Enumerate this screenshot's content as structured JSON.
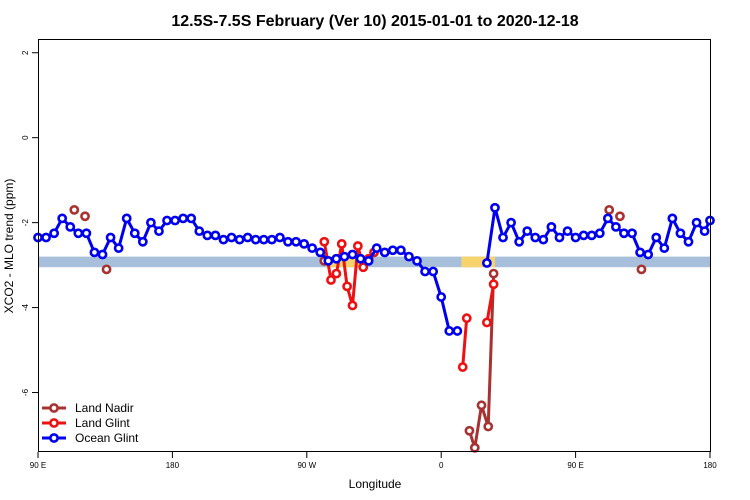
{
  "chart_data": {
    "type": "line",
    "title": "12.5S-7.5S February (Ver 10)   2015-01-01 to 2020-12-18",
    "xlabel": "Longitude",
    "ylabel": "XCO2 - MLO trend (ppm)",
    "xlim": [
      0,
      500
    ],
    "ylim": [
      -7.4,
      2.3
    ],
    "x_ticks": [
      {
        "value": 0,
        "label": "90 E"
      },
      {
        "value": 100,
        "label": "180"
      },
      {
        "value": 200,
        "label": "90 W"
      },
      {
        "value": 300,
        "label": "0"
      },
      {
        "value": 400,
        "label": "90 E"
      },
      {
        "value": 500,
        "label": "180"
      }
    ],
    "y_ticks": [
      {
        "value": 2,
        "label": "2"
      },
      {
        "value": 0,
        "label": "0"
      },
      {
        "value": -2,
        "label": "-2"
      },
      {
        "value": -4,
        "label": "-4"
      },
      {
        "value": -6,
        "label": "-6"
      }
    ],
    "band": {
      "y_low": -3.05,
      "y_high": -2.8,
      "color": "#a8bfdc"
    },
    "band_highlights": [
      {
        "x_start": 214,
        "x_end": 240,
        "color": "#f7d36b"
      },
      {
        "x_start": 315,
        "x_end": 340,
        "color": "#f7d36b"
      }
    ],
    "legend_position": "bottom-left",
    "series": [
      {
        "name": "Land Nadir",
        "color": "#a83232",
        "segments": [
          {
            "x": [
              27
            ],
            "y": [
              -1.7
            ]
          },
          {
            "x": [
              35
            ],
            "y": [
              -1.85
            ]
          },
          {
            "x": [
              51
            ],
            "y": [
              -3.1
            ]
          },
          {
            "x": [
              213
            ],
            "y": [
              -2.9
            ]
          },
          {
            "x": [
              321,
              325,
              330,
              335,
              339
            ],
            "y": [
              -6.9,
              -7.3,
              -6.3,
              -6.8,
              -3.2
            ]
          },
          {
            "x": [
              425
            ],
            "y": [
              -1.7
            ]
          },
          {
            "x": [
              433
            ],
            "y": [
              -1.85
            ]
          },
          {
            "x": [
              449
            ],
            "y": [
              -3.1
            ]
          }
        ]
      },
      {
        "name": "Land Glint",
        "color": "#ee1111",
        "segments": [
          {
            "x": [
              213,
              218,
              222,
              226,
              230,
              234,
              238,
              242,
              246,
              250
            ],
            "y": [
              -2.45,
              -3.35,
              -3.2,
              -2.5,
              -3.5,
              -3.95,
              -2.55,
              -3.05,
              -2.85,
              -2.7
            ]
          },
          {
            "x": [
              316,
              319
            ],
            "y": [
              -5.4,
              -4.25
            ]
          },
          {
            "x": [
              334,
              339
            ],
            "y": [
              -4.35,
              -3.45
            ]
          }
        ]
      },
      {
        "name": "Ocean Glint",
        "color": "#0000ee",
        "segments": [
          {
            "x": [
              0,
              6,
              12,
              18,
              24,
              30,
              36,
              42,
              48,
              54,
              60,
              66,
              72,
              78,
              84,
              90,
              96,
              102,
              108,
              114,
              120,
              126,
              132,
              138,
              144,
              150,
              156,
              162,
              168,
              174,
              180,
              186,
              192,
              198,
              204,
              210,
              216,
              222,
              228,
              234,
              240,
              246,
              252,
              258,
              264,
              270,
              276,
              282,
              288,
              294,
              300,
              306,
              312
            ],
            "y": [
              -2.35,
              -2.35,
              -2.25,
              -1.9,
              -2.1,
              -2.25,
              -2.25,
              -2.7,
              -2.75,
              -2.35,
              -2.6,
              -1.9,
              -2.25,
              -2.45,
              -2.0,
              -2.2,
              -1.95,
              -1.95,
              -1.9,
              -1.9,
              -2.2,
              -2.3,
              -2.3,
              -2.4,
              -2.35,
              -2.4,
              -2.35,
              -2.4,
              -2.4,
              -2.4,
              -2.35,
              -2.45,
              -2.45,
              -2.5,
              -2.6,
              -2.7,
              -2.9,
              -2.85,
              -2.8,
              -2.75,
              -2.85,
              -2.9,
              -2.6,
              -2.7,
              -2.65,
              -2.65,
              -2.8,
              -2.9,
              -3.15,
              -3.15,
              -3.75,
              -4.55,
              -4.55
            ]
          },
          {
            "x": [
              334,
              340,
              346,
              352,
              358,
              364,
              370,
              376,
              382,
              388,
              394,
              400,
              406,
              412,
              418,
              424,
              430,
              436,
              442,
              448,
              454,
              460,
              466,
              472,
              478,
              484,
              490,
              496,
              500
            ],
            "y": [
              -2.95,
              -1.65,
              -2.35,
              -2.0,
              -2.45,
              -2.2,
              -2.35,
              -2.4,
              -2.1,
              -2.35,
              -2.2,
              -2.35,
              -2.3,
              -2.3,
              -2.25,
              -1.9,
              -2.1,
              -2.25,
              -2.25,
              -2.7,
              -2.75,
              -2.35,
              -2.6,
              -1.9,
              -2.25,
              -2.45,
              -2.0,
              -2.2,
              -1.95
            ]
          }
        ]
      }
    ]
  }
}
